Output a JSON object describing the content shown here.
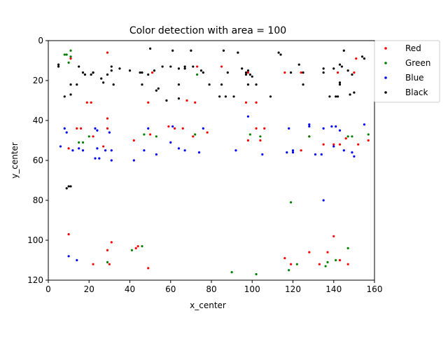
{
  "chart_data": {
    "type": "scatter",
    "title": "Color detection with area = 100",
    "xlabel": "x_center",
    "ylabel": "y_center",
    "xlim": [
      0,
      160
    ],
    "ylim": [
      120,
      0
    ],
    "y_inverted": true,
    "grid": false,
    "legend_position": "outside-right-top",
    "x_ticks": [
      "0",
      "20",
      "40",
      "60",
      "80",
      "100",
      "120",
      "140",
      "160"
    ],
    "y_ticks": [
      "0",
      "20",
      "40",
      "60",
      "80",
      "100",
      "120"
    ],
    "series": [
      {
        "name": "Red",
        "color": "#ff0000",
        "points": [
          [
            11,
            9
          ],
          [
            29,
            6
          ],
          [
            19,
            31
          ],
          [
            21,
            31
          ],
          [
            27,
            53
          ],
          [
            29,
            44
          ],
          [
            29,
            39
          ],
          [
            10,
            54
          ],
          [
            14,
            44
          ],
          [
            16,
            44
          ],
          [
            22,
            48
          ],
          [
            22,
            112
          ],
          [
            29,
            105
          ],
          [
            30,
            112
          ],
          [
            31,
            101
          ],
          [
            42,
            50
          ],
          [
            43,
            104
          ],
          [
            44,
            103
          ],
          [
            49,
            31
          ],
          [
            51,
            16
          ],
          [
            49,
            114
          ],
          [
            50,
            47
          ],
          [
            59,
            43
          ],
          [
            62,
            44
          ],
          [
            66,
            44
          ],
          [
            68,
            30
          ],
          [
            71,
            48
          ],
          [
            72,
            31
          ],
          [
            73,
            13
          ],
          [
            78,
            46
          ],
          [
            85,
            13
          ],
          [
            97,
            31
          ],
          [
            98,
            50
          ],
          [
            98,
            16
          ],
          [
            102,
            31
          ],
          [
            102,
            44
          ],
          [
            104,
            50
          ],
          [
            106,
            44
          ],
          [
            116,
            16
          ],
          [
            116,
            109
          ],
          [
            119,
            112
          ],
          [
            124,
            16
          ],
          [
            124,
            55
          ],
          [
            128,
            48
          ],
          [
            128,
            106
          ],
          [
            133,
            112
          ],
          [
            135,
            52
          ],
          [
            137,
            106
          ],
          [
            140,
            98
          ],
          [
            140,
            52
          ],
          [
            142,
            16
          ],
          [
            143,
            52
          ],
          [
            143,
            110
          ],
          [
            146,
            49
          ],
          [
            147,
            112
          ],
          [
            150,
            16
          ],
          [
            151,
            9
          ],
          [
            152,
            52
          ],
          [
            157,
            50
          ],
          [
            10,
            97
          ]
        ]
      },
      {
        "name": "Green",
        "color": "#008000",
        "points": [
          [
            8,
            7
          ],
          [
            9,
            7
          ],
          [
            10,
            11
          ],
          [
            11,
            5
          ],
          [
            11,
            8
          ],
          [
            15,
            51
          ],
          [
            17,
            51
          ],
          [
            20,
            48
          ],
          [
            29,
            111
          ],
          [
            41,
            105
          ],
          [
            46,
            103
          ],
          [
            47,
            47
          ],
          [
            53,
            48
          ],
          [
            72,
            47
          ],
          [
            73,
            17
          ],
          [
            90,
            116
          ],
          [
            99,
            47
          ],
          [
            102,
            117
          ],
          [
            104,
            48
          ],
          [
            118,
            115
          ],
          [
            119,
            81
          ],
          [
            122,
            112
          ],
          [
            128,
            48
          ],
          [
            136,
            113
          ],
          [
            137,
            111
          ],
          [
            141,
            110
          ],
          [
            147,
            104
          ],
          [
            147,
            48
          ],
          [
            149,
            48
          ],
          [
            157,
            47
          ]
        ]
      },
      {
        "name": "Blue",
        "color": "#0000ff",
        "points": [
          [
            6,
            53
          ],
          [
            8,
            44
          ],
          [
            9,
            46
          ],
          [
            10,
            108
          ],
          [
            12,
            55
          ],
          [
            14,
            110
          ],
          [
            15,
            54
          ],
          [
            17,
            55
          ],
          [
            23,
            59
          ],
          [
            23,
            44
          ],
          [
            24,
            45
          ],
          [
            24,
            54
          ],
          [
            25,
            59
          ],
          [
            28,
            55
          ],
          [
            30,
            46
          ],
          [
            31,
            60
          ],
          [
            31,
            55
          ],
          [
            42,
            60
          ],
          [
            47,
            55
          ],
          [
            49,
            44
          ],
          [
            53,
            57
          ],
          [
            60,
            51
          ],
          [
            61,
            43
          ],
          [
            64,
            54
          ],
          [
            67,
            55
          ],
          [
            74,
            56
          ],
          [
            76,
            44
          ],
          [
            92,
            55
          ],
          [
            98,
            38
          ],
          [
            105,
            57
          ],
          [
            117,
            56
          ],
          [
            118,
            44
          ],
          [
            120,
            55
          ],
          [
            120,
            56
          ],
          [
            128,
            42
          ],
          [
            128,
            43
          ],
          [
            131,
            57
          ],
          [
            134,
            57
          ],
          [
            135,
            80
          ],
          [
            135,
            44
          ],
          [
            139,
            43
          ],
          [
            141,
            43
          ],
          [
            140,
            53
          ],
          [
            143,
            45
          ],
          [
            145,
            55
          ],
          [
            149,
            56
          ],
          [
            150,
            58
          ],
          [
            155,
            42
          ]
        ]
      },
      {
        "name": "Black",
        "color": "#000000",
        "points": [
          [
            5,
            12
          ],
          [
            5,
            13
          ],
          [
            8,
            28
          ],
          [
            9,
            74
          ],
          [
            10,
            73
          ],
          [
            11,
            73
          ],
          [
            11,
            22
          ],
          [
            11,
            27
          ],
          [
            14,
            22
          ],
          [
            15,
            13
          ],
          [
            17,
            16
          ],
          [
            18,
            17
          ],
          [
            21,
            17
          ],
          [
            22,
            16
          ],
          [
            22,
            16
          ],
          [
            26,
            19
          ],
          [
            27,
            21
          ],
          [
            29,
            17
          ],
          [
            31,
            13
          ],
          [
            32,
            22
          ],
          [
            31,
            15
          ],
          [
            35,
            14
          ],
          [
            40,
            15
          ],
          [
            45,
            16
          ],
          [
            46,
            16
          ],
          [
            46,
            22
          ],
          [
            49,
            17
          ],
          [
            50,
            4
          ],
          [
            52,
            15
          ],
          [
            53,
            25
          ],
          [
            54,
            24
          ],
          [
            56,
            13
          ],
          [
            58,
            30
          ],
          [
            60,
            13
          ],
          [
            61,
            5
          ],
          [
            64,
            22
          ],
          [
            64,
            29
          ],
          [
            64,
            14
          ],
          [
            67,
            14
          ],
          [
            67,
            13
          ],
          [
            70,
            5
          ],
          [
            71,
            13
          ],
          [
            75,
            15
          ],
          [
            76,
            16
          ],
          [
            79,
            22
          ],
          [
            84,
            28
          ],
          [
            85,
            22
          ],
          [
            86,
            5
          ],
          [
            87,
            28
          ],
          [
            88,
            16
          ],
          [
            91,
            28
          ],
          [
            93,
            6
          ],
          [
            95,
            14
          ],
          [
            97,
            16
          ],
          [
            97,
            17
          ],
          [
            98,
            15
          ],
          [
            98,
            22
          ],
          [
            99,
            17
          ],
          [
            100,
            18
          ],
          [
            102,
            22
          ],
          [
            109,
            28
          ],
          [
            113,
            6
          ],
          [
            114,
            7
          ],
          [
            119,
            16
          ],
          [
            123,
            12
          ],
          [
            125,
            22
          ],
          [
            125,
            16
          ],
          [
            135,
            16
          ],
          [
            135,
            14
          ],
          [
            138,
            28
          ],
          [
            140,
            14
          ],
          [
            141,
            28
          ],
          [
            142,
            28
          ],
          [
            143,
            12
          ],
          [
            143,
            21
          ],
          [
            143,
            22
          ],
          [
            144,
            13
          ],
          [
            145,
            5
          ],
          [
            147,
            15
          ],
          [
            148,
            27
          ],
          [
            149,
            17
          ],
          [
            150,
            26
          ],
          [
            154,
            8
          ],
          [
            155,
            9
          ]
        ]
      }
    ]
  }
}
